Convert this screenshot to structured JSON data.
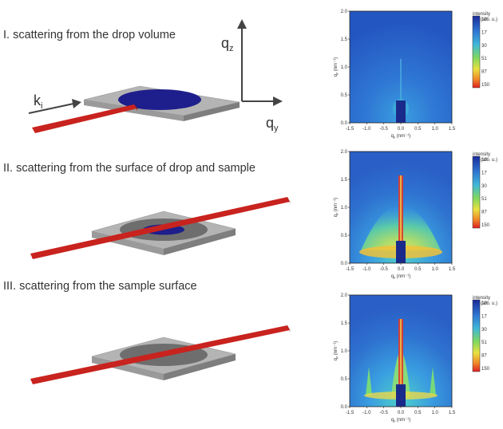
{
  "scenes": [
    {
      "caption": "I. scattering from the drop volume"
    },
    {
      "caption": "II. scattering from the surface of drop and sample"
    },
    {
      "caption": "III. scattering from the sample surface"
    }
  ],
  "axes_diagram": {
    "qz_label": "q",
    "qz_sub": "z",
    "qy_label": "q",
    "qy_sub": "y",
    "ki_label": "k",
    "ki_sub": "i"
  },
  "detector_panels": {
    "x_axis_label": "q",
    "x_axis_sub": "y",
    "x_axis_unit": "(nm⁻¹)",
    "y_axis_label": "q",
    "y_axis_sub": "z",
    "y_axis_unit": "(nm⁻¹)",
    "x_ticks": [
      "-1.5",
      "-1.0",
      "-0.5",
      "0.0",
      "0.5",
      "1.0",
      "1.5"
    ],
    "y_ticks": [
      "0.0",
      "0.5",
      "1.0",
      "1.5",
      "2.0"
    ],
    "colorbar_title_1": "intensity",
    "colorbar_title_2": "(arb. u.)",
    "colorbar_ticks": [
      "10",
      "17",
      "30",
      "51",
      "87",
      "150"
    ]
  },
  "colors": {
    "beam": "#c8231e",
    "drop": "#1e1e8c",
    "wet_area": "#6e6e6e",
    "substrate_top": "#b4b4b4",
    "substrate_side": "#8c8c8c",
    "background_map": "#2f6fd0"
  }
}
